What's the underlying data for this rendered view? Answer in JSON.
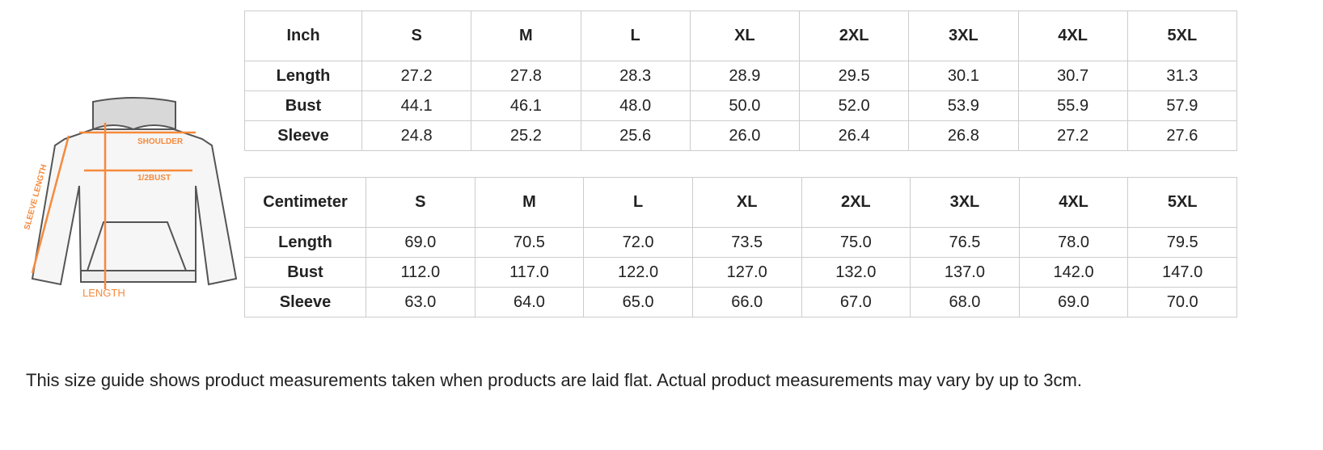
{
  "diagram": {
    "labels": {
      "shoulder": "SHOULDER",
      "bust": "1/2BUST",
      "sleeve": "SLEEVE LENGTH",
      "length": "LENGTH"
    },
    "accent_color": "#f58a3c"
  },
  "inch_table": {
    "headers": [
      "Inch",
      "S",
      "M",
      "L",
      "XL",
      "2XL",
      "3XL",
      "4XL",
      "5XL"
    ],
    "rows": [
      {
        "label": "Length",
        "values": [
          "27.2",
          "27.8",
          "28.3",
          "28.9",
          "29.5",
          "30.1",
          "30.7",
          "31.3"
        ]
      },
      {
        "label": "Bust",
        "values": [
          "44.1",
          "46.1",
          "48.0",
          "50.0",
          "52.0",
          "53.9",
          "55.9",
          "57.9"
        ]
      },
      {
        "label": "Sleeve",
        "values": [
          "24.8",
          "25.2",
          "25.6",
          "26.0",
          "26.4",
          "26.8",
          "27.2",
          "27.6"
        ]
      }
    ]
  },
  "cm_table": {
    "headers": [
      "Centimeter",
      "S",
      "M",
      "L",
      "XL",
      "2XL",
      "3XL",
      "4XL",
      "5XL"
    ],
    "rows": [
      {
        "label": "Length",
        "values": [
          "69.0",
          "70.5",
          "72.0",
          "73.5",
          "75.0",
          "76.5",
          "78.0",
          "79.5"
        ]
      },
      {
        "label": "Bust",
        "values": [
          "112.0",
          "117.0",
          "122.0",
          "127.0",
          "132.0",
          "137.0",
          "142.0",
          "147.0"
        ]
      },
      {
        "label": "Sleeve",
        "values": [
          "63.0",
          "64.0",
          "65.0",
          "66.0",
          "67.0",
          "68.0",
          "69.0",
          "70.0"
        ]
      }
    ]
  },
  "note": "This size guide shows product measurements taken when products are laid flat. Actual product measurements may vary by up to 3cm."
}
